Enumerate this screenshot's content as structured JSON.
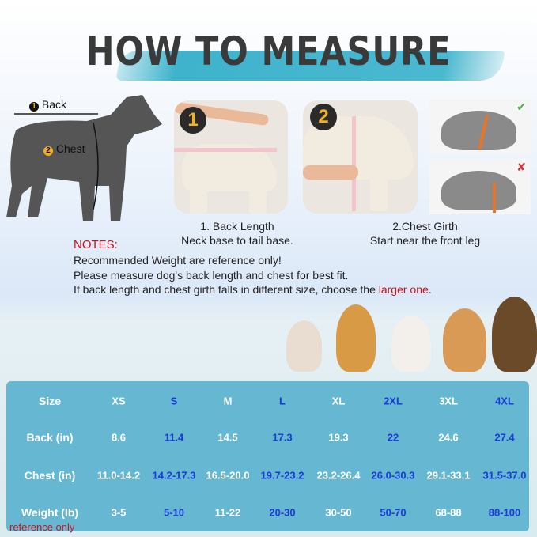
{
  "title": "HOW TO MEASURE",
  "diagram": {
    "back_label": "Back",
    "chest_label": "Chest",
    "back_num": "1",
    "chest_num": "2"
  },
  "steps": [
    {
      "num": "1",
      "title": "1. Back Length",
      "desc": "Neck base to tail base."
    },
    {
      "num": "2",
      "title": "2.Chest Girth",
      "desc": "Start near the front leg"
    }
  ],
  "examples": [
    {
      "icon": "check-icon",
      "mark": "✔"
    },
    {
      "icon": "cross-icon",
      "mark": "✘"
    }
  ],
  "notes": {
    "heading": "NOTES:",
    "lines": [
      "Recommended Weight are reference only!",
      "Please measure dog's back length and chest for best fit."
    ],
    "line3_prefix": "If back length and chest girth falls in different size, choose the ",
    "line3_highlight": "larger one",
    "line3_suffix": "."
  },
  "size_table": {
    "rows": [
      {
        "label": "Size",
        "values": [
          "XS",
          "S",
          "M",
          "L",
          "XL",
          "2XL",
          "3XL",
          "4XL"
        ]
      },
      {
        "label": "Back  (in)",
        "values": [
          "8.6",
          "11.4",
          "14.5",
          "17.3",
          "19.3",
          "22",
          "24.6",
          "27.4"
        ]
      },
      {
        "label": "Chest  (in)",
        "values": [
          "11.0-14.2",
          "14.2-17.3",
          "16.5-20.0",
          "19.7-23.2",
          "23.2-26.4",
          "26.0-30.3",
          "29.1-33.1",
          "31.5-37.0"
        ]
      },
      {
        "label": "Weight  (lb)",
        "values": [
          "3-5",
          "5-10",
          "11-22",
          "20-30",
          "30-50",
          "50-70",
          "68-88",
          "88-100"
        ]
      }
    ],
    "footnote": "reference only"
  },
  "colors": {
    "accent_red": "#c8141e",
    "table_bg": "#66b8d2",
    "blue_text": "#1a3bd6",
    "brush": "#3fb3cc"
  }
}
